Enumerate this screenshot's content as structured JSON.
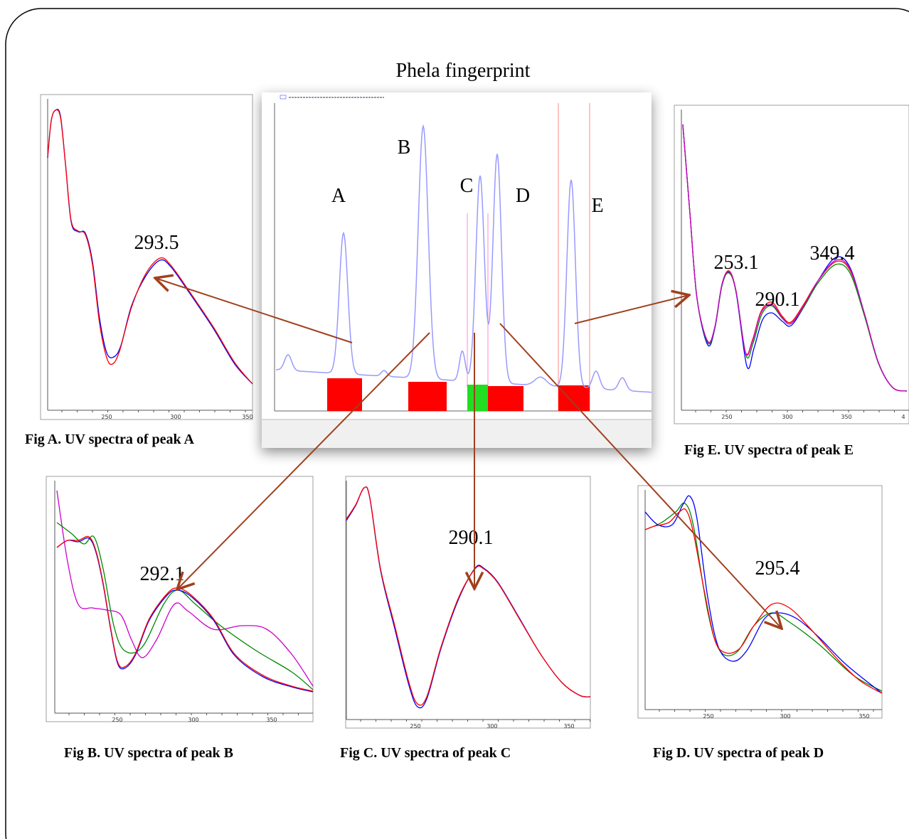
{
  "title": "Phela fingerprint",
  "fingerprint": {
    "peaks": [
      "A",
      "B",
      "C",
      "D",
      "E"
    ]
  },
  "panels": [
    {
      "caption": "Fig A. UV spectra of peak A",
      "peak_labels": [
        "293.5"
      ],
      "ticks": [
        "250",
        "300",
        "350"
      ]
    },
    {
      "caption": "Fig E. UV spectra of peak E",
      "peak_labels": [
        "253.1",
        "290.1",
        "349.4"
      ],
      "ticks": [
        "250",
        "300",
        "350",
        "4"
      ]
    },
    {
      "caption": "Fig B. UV spectra of peak B",
      "peak_labels": [
        "292.1"
      ],
      "ticks": [
        "250",
        "300",
        "350"
      ]
    },
    {
      "caption": "Fig C. UV spectra of peak C",
      "peak_labels": [
        "290.1"
      ],
      "ticks": [
        "250",
        "300",
        "350"
      ]
    },
    {
      "caption": "Fig D. UV spectra of peak D",
      "peak_labels": [
        "295.4"
      ],
      "ticks": [
        "250",
        "300",
        "350"
      ]
    }
  ]
}
